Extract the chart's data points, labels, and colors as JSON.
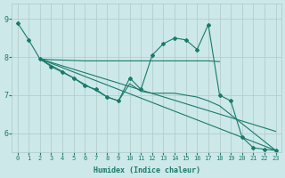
{
  "bg_color": "#cce8e8",
  "grid_color": "#b0c8c8",
  "line_color": "#1a7a6a",
  "xlabel": "Humidex (Indice chaleur)",
  "xlim": [
    -0.5,
    23.5
  ],
  "ylim": [
    5.5,
    9.4
  ],
  "yticks": [
    6,
    7,
    8,
    9
  ],
  "xticks": [
    0,
    1,
    2,
    3,
    4,
    5,
    6,
    7,
    8,
    9,
    10,
    11,
    12,
    13,
    14,
    15,
    16,
    17,
    18,
    19,
    20,
    21,
    22,
    23
  ],
  "lines": [
    {
      "x": [
        0,
        1,
        2,
        3,
        4,
        5,
        6,
        7,
        8,
        9,
        10,
        11,
        12,
        13,
        14,
        15,
        16,
        17,
        18,
        19,
        20,
        21,
        22,
        23
      ],
      "y": [
        8.9,
        8.45,
        7.95,
        7.75,
        7.6,
        7.45,
        7.25,
        7.15,
        6.95,
        6.85,
        7.45,
        7.15,
        8.05,
        8.35,
        8.5,
        8.45,
        8.2,
        8.85,
        7.0,
        6.85,
        5.9,
        5.62,
        5.58,
        5.55
      ],
      "has_marker": true
    },
    {
      "x": [
        2,
        3,
        4,
        5,
        6,
        7,
        8,
        9,
        10,
        11,
        12,
        13,
        14,
        15,
        16,
        17,
        18
      ],
      "y": [
        7.95,
        7.93,
        7.92,
        7.91,
        7.9,
        7.9,
        7.9,
        7.9,
        7.9,
        7.9,
        7.9,
        7.9,
        7.9,
        7.9,
        7.9,
        7.9,
        7.88
      ],
      "has_marker": false
    },
    {
      "x": [
        2,
        23
      ],
      "y": [
        7.95,
        5.55
      ],
      "has_marker": false
    },
    {
      "x": [
        2,
        23
      ],
      "y": [
        7.95,
        6.05
      ],
      "has_marker": false
    },
    {
      "x": [
        2,
        3,
        4,
        5,
        6,
        7,
        8,
        9,
        10,
        11,
        12,
        13,
        14,
        15,
        16,
        17,
        18,
        23
      ],
      "y": [
        7.95,
        7.78,
        7.62,
        7.45,
        7.28,
        7.12,
        6.95,
        6.85,
        7.3,
        7.1,
        7.05,
        7.05,
        7.05,
        7.0,
        6.95,
        6.85,
        6.72,
        5.55
      ],
      "has_marker": false
    }
  ]
}
